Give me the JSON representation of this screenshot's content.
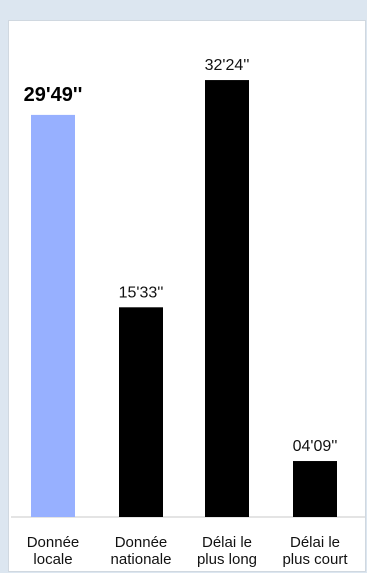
{
  "chart_data": {
    "type": "bar",
    "categories": [
      [
        "Donnée",
        "locale"
      ],
      [
        "Donnée",
        "nationale"
      ],
      [
        "Délai le",
        "plus long"
      ],
      [
        "Délai le",
        "plus court"
      ]
    ],
    "values_seconds": [
      1789,
      933,
      1944,
      249
    ],
    "value_labels": [
      "29'49''",
      "15'33''",
      "32'24''",
      "04'09''"
    ],
    "highlight_index": 0,
    "colors": [
      "#97b0ff",
      "#000000",
      "#000000",
      "#000000"
    ],
    "ylim": [
      0,
      2100
    ],
    "grid": false,
    "legend": "none"
  }
}
